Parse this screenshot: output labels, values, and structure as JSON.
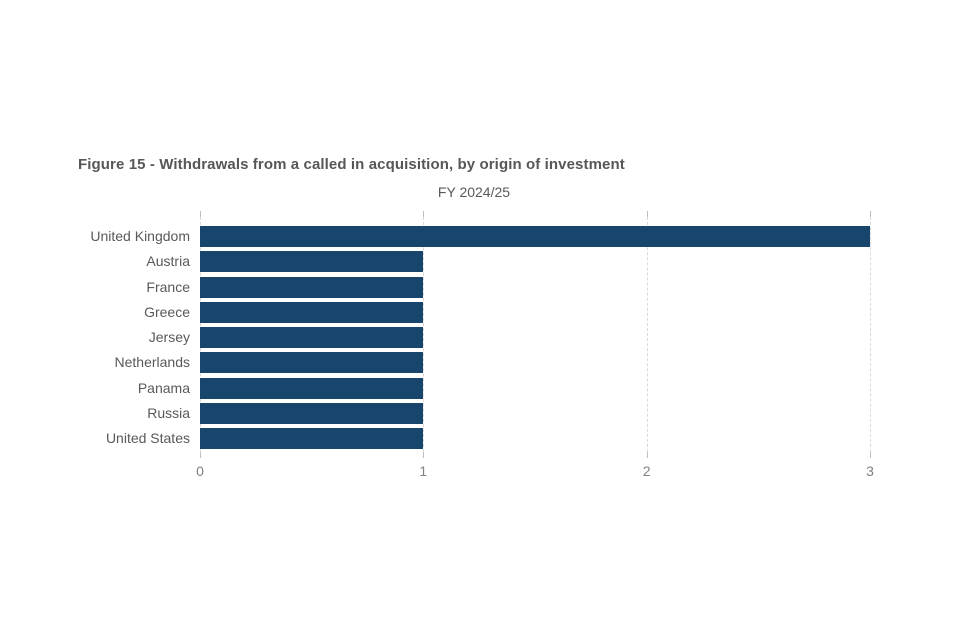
{
  "chart_data": {
    "type": "bar",
    "orientation": "horizontal",
    "title": "Figure 15 - Withdrawals from a called in acquisition, by origin of investment",
    "subtitle": "FY 2024/25",
    "categories": [
      "United Kingdom",
      "Austria",
      "France",
      "Greece",
      "Jersey",
      "Netherlands",
      "Panama",
      "Russia",
      "United States"
    ],
    "values": [
      3,
      1,
      1,
      1,
      1,
      1,
      1,
      1,
      1
    ],
    "xlabel": "",
    "ylabel": "",
    "xlim": [
      0,
      3
    ],
    "x_ticks": [
      0,
      1,
      2,
      3
    ],
    "grid": "vertical-dashed",
    "legend": "none",
    "colors": {
      "bar": "#17456B",
      "title_text": "#57575A",
      "subtitle_text": "#595959",
      "category_text": "#595959",
      "tick_text": "#808080",
      "gridline": "#D9D9D9",
      "tick_mark": "#BFBFBF",
      "background": "#FFFFFF"
    }
  }
}
